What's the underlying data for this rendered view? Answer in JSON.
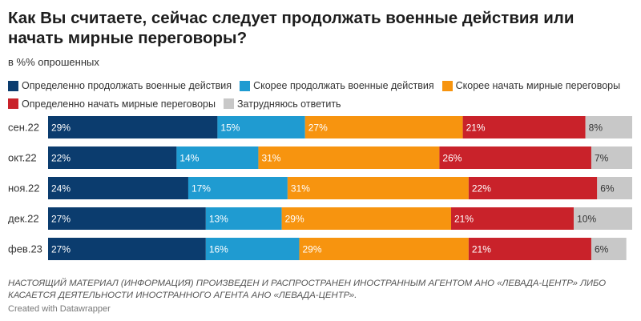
{
  "header": {
    "title": "Как Вы считаете, сейчас следует продолжать военные действия или начать мирные переговоры?",
    "subtitle": "в %% опрошенных"
  },
  "footer": {
    "note": "НАСТОЯЩИЙ МАТЕРИАЛ (ИНФОРМАЦИЯ) ПРОИЗВЕДЕН И РАСПРОСТРАНЕН ИНОСТРАННЫМ АГЕНТОМ АНО «ЛЕВАДА-ЦЕНТР» ЛИБО КАСАЕТСЯ ДЕЯТЕЛЬНОСТИ ИНОСТРАННОГО АГЕНТА АНО «ЛЕВАДА-ЦЕНТР».",
    "credit": "Created with Datawrapper"
  },
  "chart_data": {
    "type": "bar",
    "orientation": "horizontal",
    "stacked": true,
    "title": "Как Вы считаете, сейчас следует продолжать военные действия или начать мирные переговоры?",
    "subtitle": "в %% опрошенных",
    "legend_position": "top",
    "grid": false,
    "xlim": [
      0,
      100
    ],
    "categories": [
      "сен.22",
      "окт.22",
      "ноя.22",
      "дек.22",
      "фев.23"
    ],
    "series": [
      {
        "name": "Определенно продолжать военные действия",
        "color": "#0b3c6e",
        "text_color": "#ffffff",
        "values": [
          29,
          22,
          24,
          27,
          27
        ],
        "labels": [
          "29%",
          "22%",
          "24%",
          "27%",
          "27%"
        ]
      },
      {
        "name": "Скорее продолжать военные действия",
        "color": "#1f9bd1",
        "text_color": "#ffffff",
        "values": [
          15,
          14,
          17,
          13,
          16
        ],
        "labels": [
          "15%",
          "14%",
          "17%",
          "13%",
          "16%"
        ]
      },
      {
        "name": "Скорее начать мирные переговоры",
        "color": "#f7940f",
        "text_color": "#ffffff",
        "values": [
          27,
          31,
          31,
          29,
          29
        ],
        "labels": [
          "27%",
          "31%",
          "31%",
          "29%",
          "29%"
        ]
      },
      {
        "name": "Определенно начать мирные переговоры",
        "color": "#c9222a",
        "text_color": "#ffffff",
        "values": [
          21,
          26,
          22,
          21,
          21
        ],
        "labels": [
          "21%",
          "26%",
          "22%",
          "21%",
          "21%"
        ]
      },
      {
        "name": "Затрудняюсь ответить",
        "color": "#c8c8c8",
        "text_color": "#333333",
        "values": [
          8,
          7,
          6,
          10,
          6
        ],
        "labels": [
          "8%",
          "7%",
          "6%",
          "10%",
          "6%"
        ]
      }
    ]
  }
}
